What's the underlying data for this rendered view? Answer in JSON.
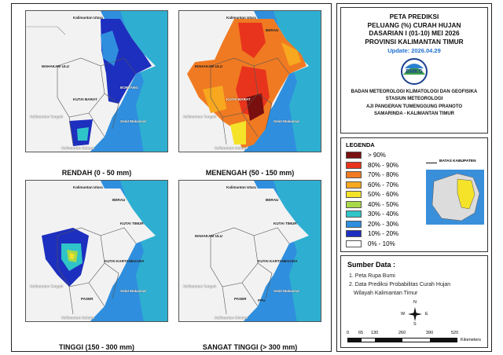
{
  "maps": [
    {
      "title": "RENDAH (0 - 50 mm)"
    },
    {
      "title": "MENENGAH (50 - 150 mm)"
    },
    {
      "title": "TINGGI (150 - 300 mm)"
    },
    {
      "title": "SANGAT TINGGI (> 300 mm)"
    }
  ],
  "places": {
    "kaltara": "Kalimantan Utara",
    "berau": "BERAU",
    "mahakam": "MAHAKAM ULU",
    "kutim": "KUTAI TIMUR",
    "kubar": "KUTAI BARAT",
    "kukar": "KUTAI KARTANEGARA",
    "bontang": "BONTANG",
    "paser": "PASER",
    "ppu": "PPU",
    "kalteng": "Kalimantan Tengah",
    "kalsel": "Kalimantan Selatan",
    "selat": "Selat Makassar"
  },
  "title": {
    "line1": "PETA PREDIKSI",
    "line2": "PELUANG (%) CURAH HUJAN",
    "line3": "DASARIAN I (01-10) MEI 2026",
    "line4": "PROVINSI KALIMANTAN TIMUR",
    "update": "Update: 2026.04.29",
    "logo_text": "BMKG",
    "org1": "BADAN METEOROLOGI KLIMATOLOGI DAN GEOFISIKA",
    "org2": "STASIUN METEOROLOGI",
    "org3": "AJI PANGERAN TUMENGGUNG PRANOTO",
    "org4": "SAMARINDA - KALIMANTAN TIMUR"
  },
  "legend": {
    "heading": "LEGENDA",
    "boundary_label": "BATAS KABUPATEN",
    "items": [
      {
        "label": "> 90%",
        "color": "#7a0f0f"
      },
      {
        "label": "80% - 90%",
        "color": "#e8341c"
      },
      {
        "label": "70% - 80%",
        "color": "#f07a22"
      },
      {
        "label": "60% - 70%",
        "color": "#f7a81f"
      },
      {
        "label": "50% - 60%",
        "color": "#f5e32a"
      },
      {
        "label": "40% - 50%",
        "color": "#a7d948"
      },
      {
        "label": "30% - 40%",
        "color": "#2fc4c8"
      },
      {
        "label": "20% - 30%",
        "color": "#2f8fde"
      },
      {
        "label": "10% - 20%",
        "color": "#1d2fbe"
      },
      {
        "label": "0% - 10%",
        "color": "#ffffff"
      }
    ]
  },
  "sources": {
    "heading": "Sumber Data :",
    "item1": "1. Peta Rupa Bumi",
    "item2": "2. Data Prediksi Probabilitas Curah Hujan",
    "item2b": "Wilayah Kalimantan Timur"
  },
  "compass": {
    "n": "N",
    "s": "S",
    "e": "E",
    "w": "W"
  },
  "scale": {
    "ticks": [
      "0",
      "65",
      "130",
      "260",
      "390",
      "520"
    ],
    "unit": "Kilometers"
  }
}
